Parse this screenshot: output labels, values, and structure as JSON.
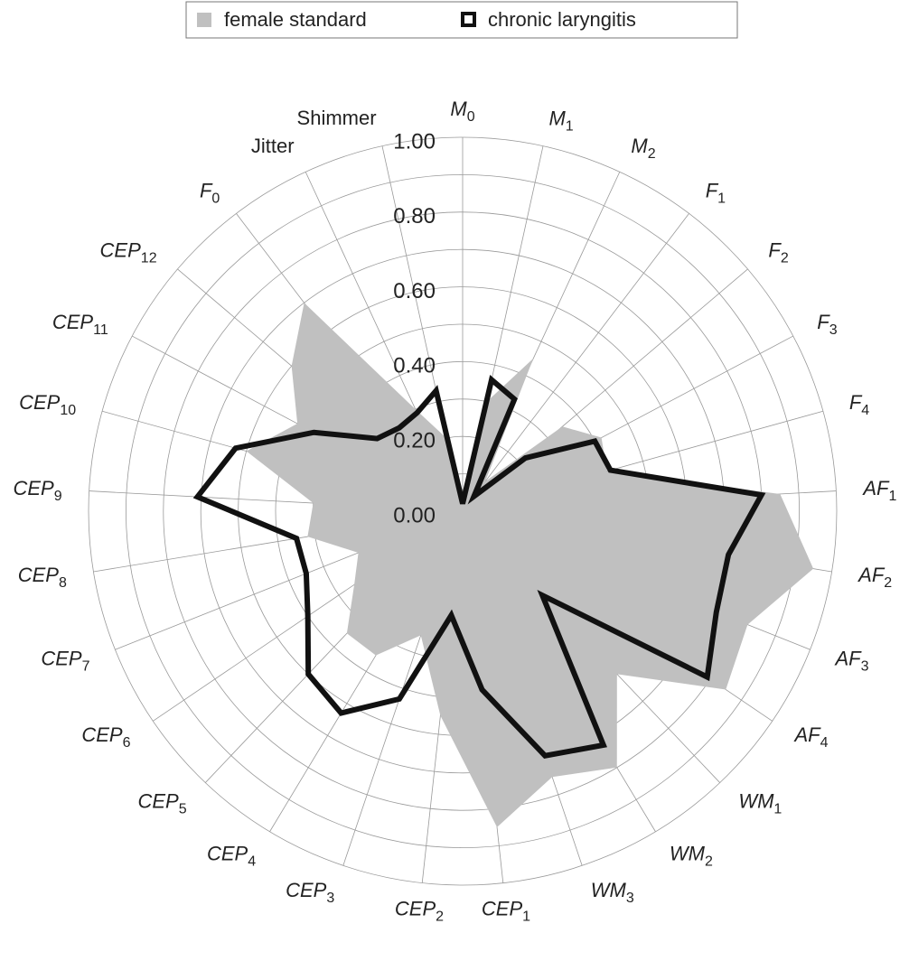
{
  "chart_data": {
    "type": "radar",
    "categories": [
      "M0",
      "M1",
      "M2",
      "F1",
      "F2",
      "F3",
      "F4",
      "AF1",
      "AF2",
      "AF3",
      "AF4",
      "WM1",
      "WM2",
      "WM3",
      "CEP1",
      "CEP2",
      "CEP3",
      "CEP4",
      "CEP5",
      "CEP6",
      "CEP7",
      "CEP8",
      "CEP9",
      "CEP10",
      "CEP11",
      "CEP12",
      "F0",
      "Jitter",
      "Shimmer"
    ],
    "series": [
      {
        "name": "female standard",
        "color": "#c0c0c0",
        "fill": true,
        "values": [
          0.05,
          0.3,
          0.45,
          0.1,
          0.35,
          0.42,
          0.4,
          0.85,
          0.95,
          0.82,
          0.85,
          0.6,
          0.8,
          0.75,
          0.85,
          0.55,
          0.35,
          0.45,
          0.45,
          0.35,
          0.3,
          0.42,
          0.4,
          0.6,
          0.5,
          0.6,
          0.7,
          0.3,
          0.2
        ]
      },
      {
        "name": "chronic laryngitis",
        "color": "#111111",
        "fill": false,
        "values": [
          0.02,
          0.36,
          0.33,
          0.05,
          0.22,
          0.4,
          0.41,
          0.8,
          0.72,
          0.73,
          0.79,
          0.31,
          0.73,
          0.69,
          0.48,
          0.28,
          0.53,
          0.63,
          0.6,
          0.5,
          0.45,
          0.45,
          0.71,
          0.63,
          0.45,
          0.3,
          0.28,
          0.29,
          0.33
        ]
      }
    ],
    "ylim": [
      0,
      1
    ],
    "yticks": [
      {
        "value": 0,
        "label": "0.00"
      },
      {
        "value": 0.2,
        "label": "0.20"
      },
      {
        "value": 0.4,
        "label": "0.40"
      },
      {
        "value": 0.6,
        "label": "0.60"
      },
      {
        "value": 0.8,
        "label": "0.80"
      },
      {
        "value": 1,
        "label": "1.00"
      }
    ],
    "grid": true,
    "legend": "top"
  }
}
